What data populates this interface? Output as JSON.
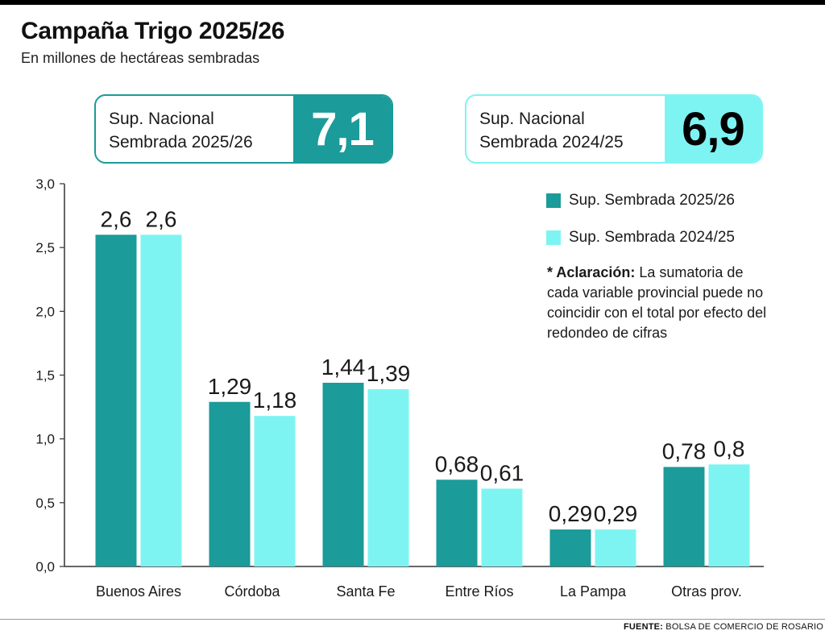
{
  "header": {
    "title": "Campaña Trigo 2025/26",
    "subtitle": "En millones de hectáreas sembradas"
  },
  "kpis": [
    {
      "label_line1": "Sup. Nacional",
      "label_line2": "Sembrada 2025/26",
      "value": "7,1",
      "color": "#1b9b99"
    },
    {
      "label_line1": "Sup. Nacional",
      "label_line2": "Sembrada 2024/25",
      "value": "6,9",
      "color": "#7ef4f2"
    }
  ],
  "note": {
    "bold": "* Aclaración:",
    "text": " La sumatoria de cada variable provincial puede no coincidir con el total por efecto del redondeo de cifras"
  },
  "source": {
    "label": "FUENTE:",
    "text": " BOLSA DE COMERCIO DE ROSARIO"
  },
  "chart_data": {
    "type": "bar",
    "categories": [
      "Buenos Aires",
      "Córdoba",
      "Santa Fe",
      "Entre Ríos",
      "La Pampa",
      "Otras prov."
    ],
    "series": [
      {
        "name": "Sup. Sembrada 2025/26",
        "values": [
          2.6,
          1.29,
          1.44,
          0.68,
          0.29,
          0.78
        ],
        "labels": [
          "2,6",
          "1,29",
          "1,44",
          "0,68",
          "0,29",
          "0,78"
        ],
        "color": "#1b9b99"
      },
      {
        "name": "Sup. Sembrada 2024/25",
        "values": [
          2.6,
          1.18,
          1.39,
          0.61,
          0.29,
          0.8
        ],
        "labels": [
          "2,6",
          "1,18",
          "1,39",
          "0,61",
          "0,29",
          "0,8"
        ],
        "color": "#7ef4f2"
      }
    ],
    "ylim": [
      0,
      3
    ],
    "yticks": [
      0,
      0.5,
      1,
      1.5,
      2,
      2.5,
      3
    ],
    "ytick_labels": [
      "0,0",
      "0,5",
      "1,0",
      "1,5",
      "2,0",
      "2,5",
      "3,0"
    ],
    "grid": false,
    "legend": "top-right"
  }
}
